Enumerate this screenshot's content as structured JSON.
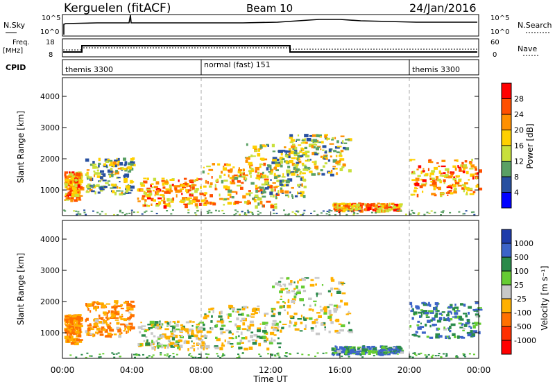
{
  "header": {
    "station": "Kerguelen (fitACF)",
    "beam": "Beam 10",
    "date": "24/Jan/2016"
  },
  "top_panel": {
    "left_label": "N.Sky",
    "left_ticks": [
      "10^5",
      "10^0"
    ],
    "right_label": "N.Search",
    "right_ticks": [
      "10^5",
      "10^0"
    ]
  },
  "freq_panel": {
    "left_label_1": "Freq.",
    "left_label_2": "[MHz]",
    "left_ticks": [
      "18",
      "8"
    ],
    "right_label": "Nave",
    "right_ticks": [
      "60",
      "0"
    ]
  },
  "cpid": {
    "label": "CPID",
    "segments": [
      {
        "label": "themis 3300",
        "start_h": 0,
        "end_h": 8
      },
      {
        "label": "normal (fast) 151",
        "start_h": 8,
        "end_h": 20
      },
      {
        "label": "themis 3300",
        "start_h": 20,
        "end_h": 24
      }
    ]
  },
  "power_colorbar": {
    "label": "Power [dB]",
    "ticks": [
      "28",
      "24",
      "20",
      "16",
      "12",
      "8",
      "4"
    ],
    "colors": [
      "#ff0000",
      "#ff5000",
      "#ff9000",
      "#ffd000",
      "#c8e03c",
      "#5aa064",
      "#2850a0",
      "#0000ff"
    ]
  },
  "velocity_colorbar": {
    "label": "Velocity [m s⁻¹]",
    "ticks": [
      "1000",
      "500",
      "100",
      "25",
      "-25",
      "-100",
      "-500",
      "-1000"
    ],
    "colors": [
      "#1e3caa",
      "#3c64c8",
      "#2a8a4a",
      "#66cc33",
      "#c8c8c8",
      "#ffb000",
      "#ff7000",
      "#ff3000",
      "#ff0000"
    ]
  },
  "x_axis": {
    "ticks": [
      "00:00",
      "04:00",
      "08:00",
      "12:00",
      "16:00",
      "20:00",
      "00:00"
    ],
    "label": "Time UT"
  },
  "y_axis": {
    "label": "Slant Range [km]",
    "ticks": [
      "1000",
      "2000",
      "3000",
      "4000"
    ]
  },
  "chart_data": [
    {
      "type": "heatmap",
      "title": "Power",
      "xlabel": "Time UT",
      "ylabel": "Slant Range [km]",
      "xlim": [
        0,
        24
      ],
      "ylim": [
        180,
        4600
      ],
      "colorbar": "Power [dB]",
      "blobs": [
        {
          "t": [
            0.1,
            1.0
          ],
          "r": [
            700,
            1600
          ],
          "value": 26
        },
        {
          "t": [
            1.3,
            4.0
          ],
          "r": [
            900,
            2050
          ],
          "value": 18
        },
        {
          "t": [
            4.3,
            8.0
          ],
          "r": [
            500,
            1400
          ],
          "value": 26
        },
        {
          "t": [
            8.0,
            12.5
          ],
          "r": [
            500,
            1900
          ],
          "value": 24
        },
        {
          "t": [
            10.5,
            14.0
          ],
          "r": [
            800,
            2500
          ],
          "value": 18
        },
        {
          "t": [
            13.0,
            16.5
          ],
          "r": [
            1500,
            2800
          ],
          "value": 20
        },
        {
          "t": [
            15.5,
            19.5
          ],
          "r": [
            350,
            600
          ],
          "value": 26
        },
        {
          "t": [
            20.0,
            24.0
          ],
          "r": [
            850,
            2000
          ],
          "value": 26
        }
      ]
    },
    {
      "type": "heatmap",
      "title": "Velocity",
      "xlabel": "Time UT",
      "ylabel": "Slant Range [km]",
      "xlim": [
        0,
        24
      ],
      "ylim": [
        180,
        4600
      ],
      "colorbar": "Velocity [m s-1]",
      "blobs": [
        {
          "t": [
            0.1,
            1.0
          ],
          "r": [
            700,
            1600
          ],
          "value": -100
        },
        {
          "t": [
            1.3,
            4.0
          ],
          "r": [
            900,
            2050
          ],
          "value": -100
        },
        {
          "t": [
            4.3,
            8.0
          ],
          "r": [
            500,
            1400
          ],
          "value": 0
        },
        {
          "t": [
            8.0,
            12.5
          ],
          "r": [
            500,
            1900
          ],
          "value": 0
        },
        {
          "t": [
            12.0,
            16.5
          ],
          "r": [
            1000,
            2800
          ],
          "value": 0
        },
        {
          "t": [
            15.5,
            19.5
          ],
          "r": [
            350,
            600
          ],
          "value": 100
        },
        {
          "t": [
            20.0,
            24.0
          ],
          "r": [
            850,
            2000
          ],
          "value": 100
        }
      ]
    }
  ]
}
